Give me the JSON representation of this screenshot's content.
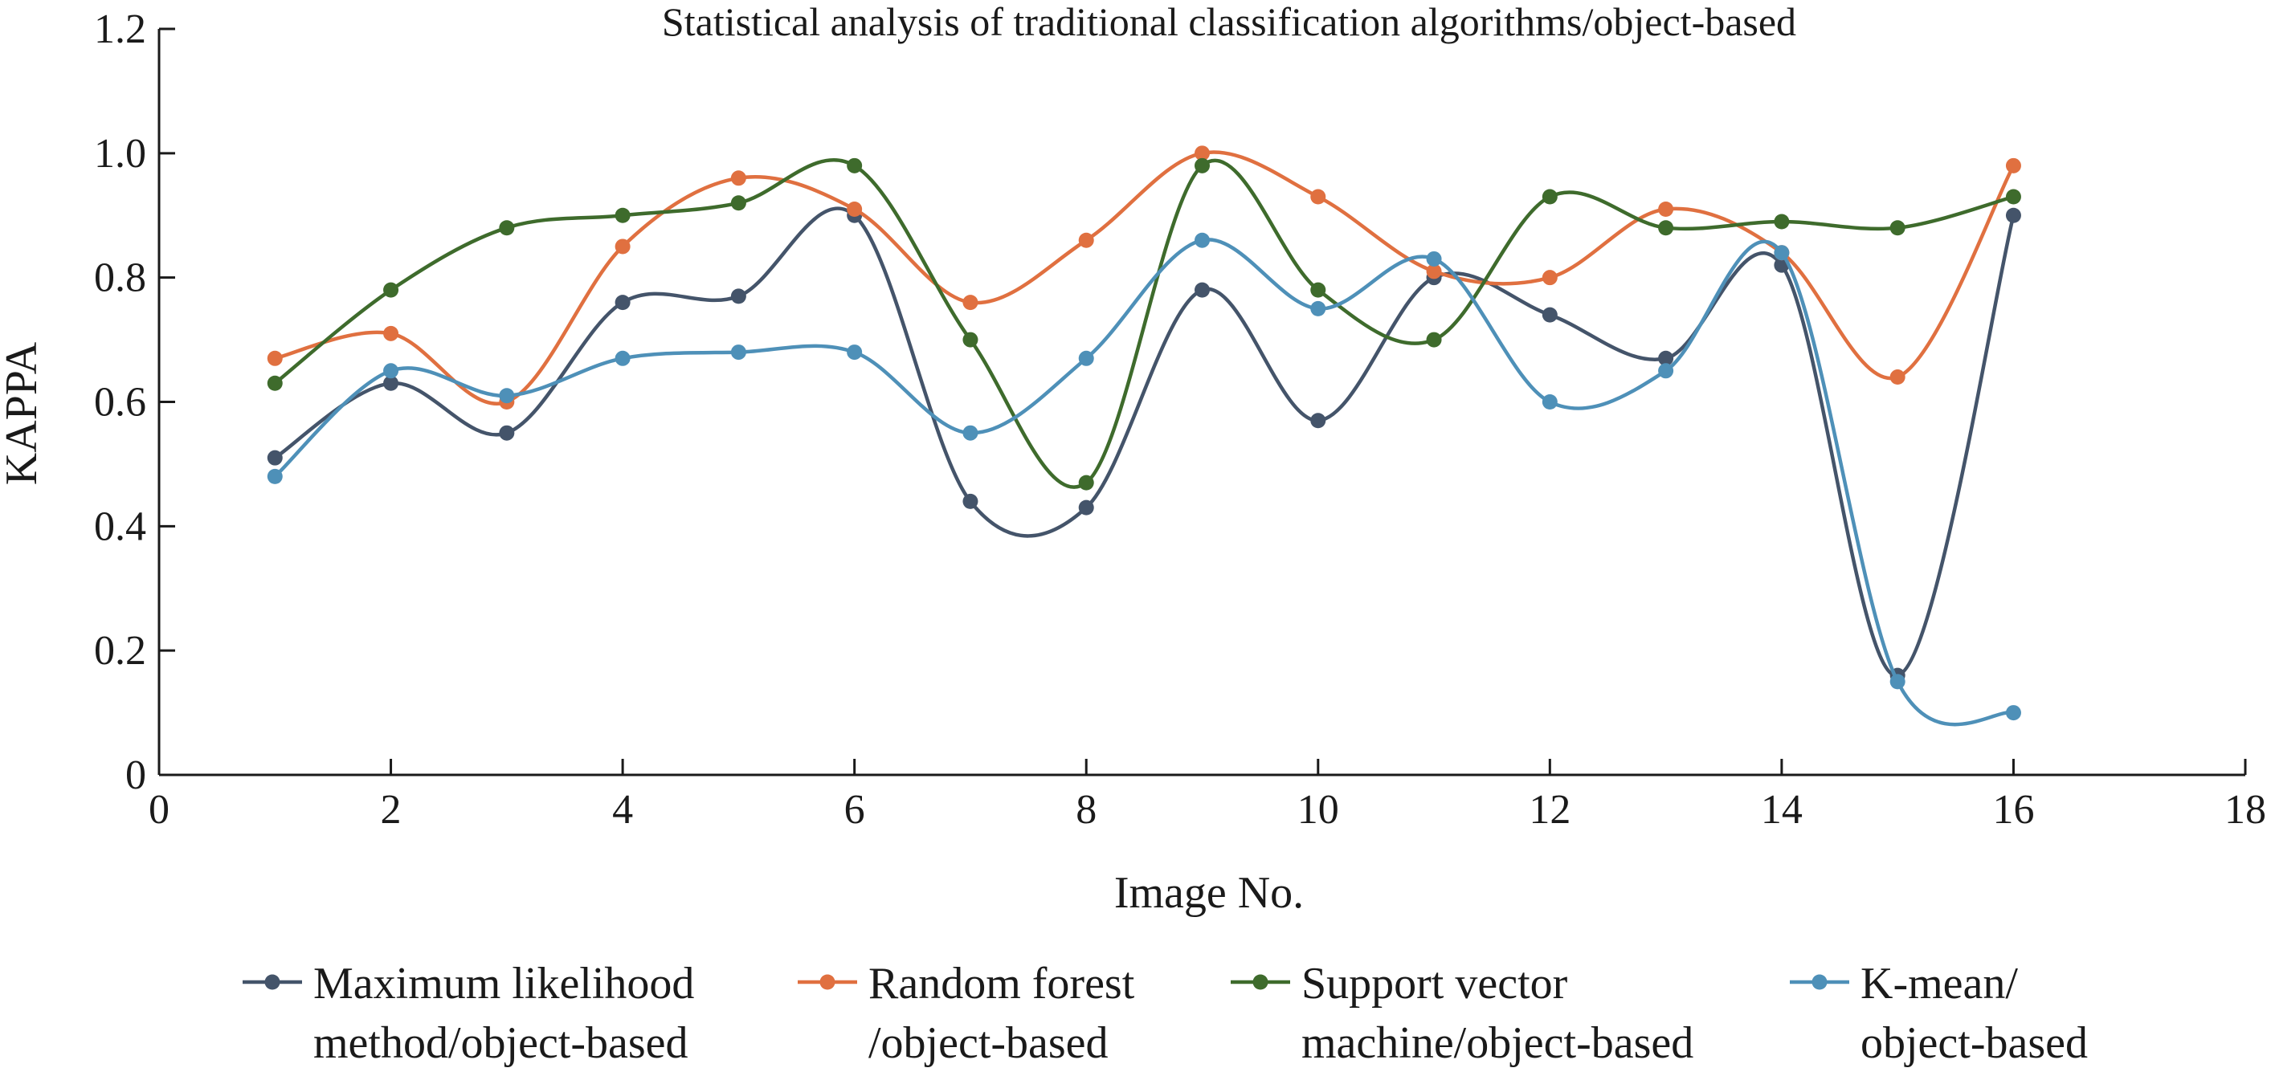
{
  "chart_data": {
    "type": "line",
    "title": "Statistical analysis of traditional classification algorithms/object-based",
    "xlabel": "Image No.",
    "ylabel": "KAPPA",
    "xlim": [
      0,
      18
    ],
    "ylim": [
      0,
      1.2
    ],
    "xticks": [
      {
        "value": 0,
        "label": "0"
      },
      {
        "value": 2,
        "label": "2"
      },
      {
        "value": 4,
        "label": "4"
      },
      {
        "value": 6,
        "label": "6"
      },
      {
        "value": 8,
        "label": "8"
      },
      {
        "value": 10,
        "label": "10"
      },
      {
        "value": 12,
        "label": "12"
      },
      {
        "value": 14,
        "label": "14"
      },
      {
        "value": 16,
        "label": "16"
      },
      {
        "value": 18,
        "label": "18"
      }
    ],
    "yticks": [
      {
        "value": 0,
        "label": "0"
      },
      {
        "value": 0.2,
        "label": "0.2"
      },
      {
        "value": 0.4,
        "label": "0.4"
      },
      {
        "value": 0.6,
        "label": "0.6"
      },
      {
        "value": 0.8,
        "label": "0.8"
      },
      {
        "value": 1.0,
        "label": "1.0"
      },
      {
        "value": 1.2,
        "label": "1.2"
      }
    ],
    "x": [
      1,
      2,
      3,
      4,
      5,
      6,
      7,
      8,
      9,
      10,
      11,
      12,
      13,
      14,
      15,
      16
    ],
    "smooth": true,
    "grid": false,
    "legend_position": "bottom",
    "series": [
      {
        "name_lines": [
          "Maximum likelihood",
          "method/object-based"
        ],
        "color": "#44546a",
        "values": [
          0.51,
          0.63,
          0.55,
          0.76,
          0.77,
          0.9,
          0.44,
          0.43,
          0.78,
          0.57,
          0.8,
          0.74,
          0.67,
          0.82,
          0.16,
          0.9
        ]
      },
      {
        "name_lines": [
          "Random forest",
          "/object-based"
        ],
        "color": "#e07040",
        "values": [
          0.67,
          0.71,
          0.6,
          0.85,
          0.96,
          0.91,
          0.76,
          0.86,
          1.0,
          0.93,
          0.81,
          0.8,
          0.91,
          0.84,
          0.64,
          0.98
        ]
      },
      {
        "name_lines": [
          "Support vector",
          "machine/object-based"
        ],
        "color": "#3e6b2c",
        "values": [
          0.63,
          0.78,
          0.88,
          0.9,
          0.92,
          0.98,
          0.7,
          0.47,
          0.98,
          0.78,
          0.7,
          0.93,
          0.88,
          0.89,
          0.88,
          0.93
        ]
      },
      {
        "name_lines": [
          "K-mean/",
          "object-based"
        ],
        "color": "#4e90b8",
        "values": [
          0.48,
          0.65,
          0.61,
          0.67,
          0.68,
          0.68,
          0.55,
          0.67,
          0.86,
          0.75,
          0.83,
          0.6,
          0.65,
          0.84,
          0.15,
          0.1
        ]
      }
    ]
  }
}
